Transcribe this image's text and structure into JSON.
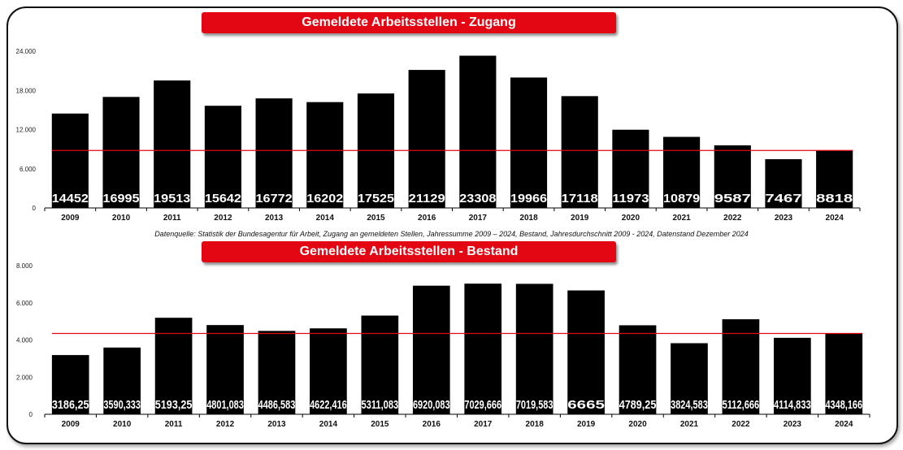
{
  "source_note": "Datenquelle: Statistik der Bundesagentur für Arbeit, Zugang an gemeldeten Stellen, Jahressumme 2009 – 2024, Bestand, Jahresdurchschnitt 2009 - 2024, Datenstand Dezember 2024",
  "colors": {
    "bar": "#000000",
    "average_line": "#e30613",
    "banner": "#e30613",
    "label": "#ffffff"
  },
  "chart_data": [
    {
      "type": "bar",
      "title": "Gemeldete Arbeitsstellen - Zugang",
      "categories": [
        "2009",
        "2010",
        "2011",
        "2012",
        "2013",
        "2014",
        "2015",
        "2016",
        "2017",
        "2018",
        "2019",
        "2020",
        "2021",
        "2022",
        "2023",
        "2024"
      ],
      "values": [
        14452,
        16995,
        19513,
        15642,
        16772,
        16202,
        17525,
        21129,
        23308,
        19966,
        17118,
        11973,
        10879,
        9587,
        7467,
        8818
      ],
      "value_labels": [
        "14452",
        "16995",
        "19513",
        "15642",
        "16772",
        "16202",
        "17525",
        "21129",
        "23308",
        "19966",
        "17118",
        "11973",
        "10879",
        "9587",
        "7467",
        "8818"
      ],
      "yticks": [
        "0",
        "6.000",
        "12.000",
        "18.000",
        "24.000"
      ],
      "ylim": [
        0,
        24000
      ],
      "reference_line": 8800,
      "grid": false
    },
    {
      "type": "bar",
      "title": "Gemeldete Arbeitsstellen - Bestand",
      "categories": [
        "2009",
        "2010",
        "2011",
        "2012",
        "2013",
        "2014",
        "2015",
        "2016",
        "2017",
        "2018",
        "2019",
        "2020",
        "2021",
        "2022",
        "2023",
        "2024"
      ],
      "values": [
        3186.25,
        3590.333,
        5193.25,
        4801.083,
        4486.583,
        4622.416,
        5311.083,
        6920.083,
        7029.666,
        7019.583,
        6665,
        4789.25,
        3824.583,
        5112.666,
        4114.833,
        4348.166
      ],
      "value_labels": [
        "3186,25",
        "3590,333",
        "5193,25",
        "4801,083",
        "4486,583",
        "4622,416",
        "5311,083",
        "6920,083",
        "7029,666",
        "7019,583",
        "6665",
        "4789,25",
        "3824,583",
        "5112,666",
        "4114,833",
        "4348,166"
      ],
      "yticks": [
        "0",
        "2.000",
        "4.000",
        "6.000",
        "8.000"
      ],
      "ylim": [
        0,
        8000
      ],
      "reference_line": 4350,
      "grid": false
    }
  ]
}
